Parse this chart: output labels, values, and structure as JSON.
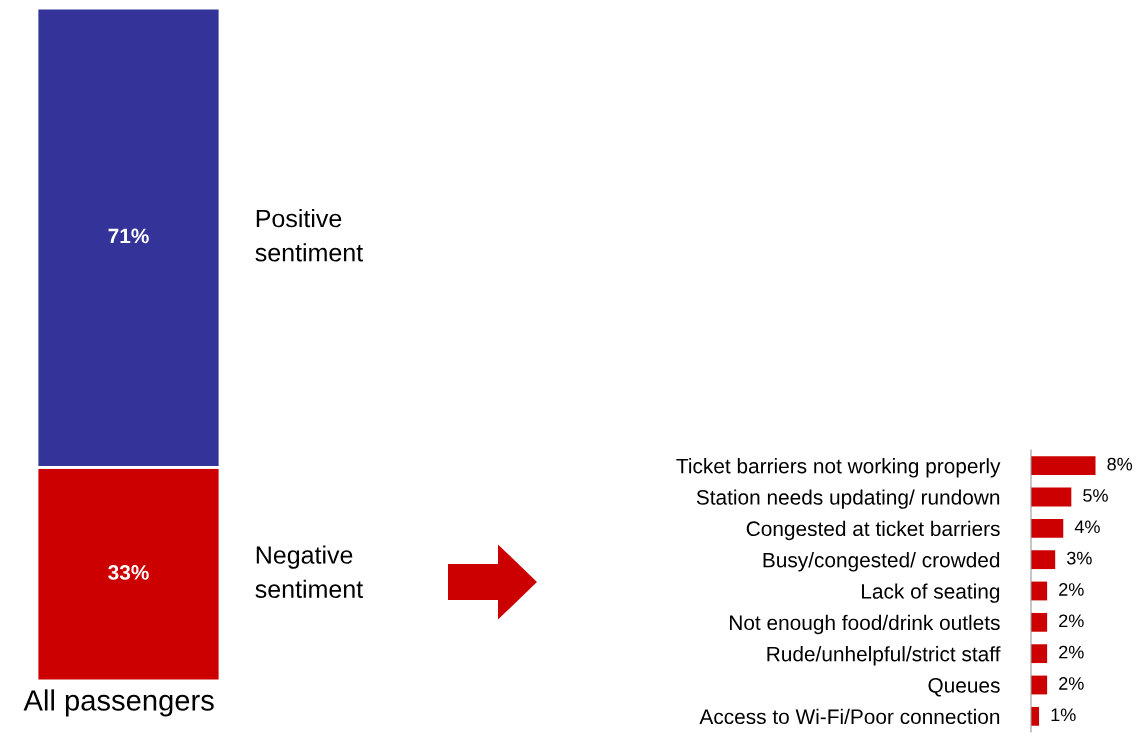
{
  "chart_data": [
    {
      "type": "bar",
      "stacked": true,
      "categories": [
        "All passengers"
      ],
      "series": [
        {
          "name": "Negative\nsentiment",
          "color": "#cc0000",
          "values": [
            33
          ],
          "value_labels": [
            "33%"
          ]
        },
        {
          "name": "Positive\nsentiment",
          "color": "#333399",
          "values": [
            71
          ],
          "value_labels": [
            "71%"
          ]
        }
      ]
    },
    {
      "type": "bar",
      "orientation": "horizontal",
      "categories": [
        "Ticket barriers not working properly",
        "Station needs updating/ rundown",
        "Congested at ticket barriers",
        "Busy/congested/ crowded",
        "Lack of seating",
        "Not enough food/drink outlets",
        "Rude/unhelpful/strict staff",
        "Queues",
        "Access to Wi-Fi/Poor connection"
      ],
      "values": [
        8,
        5,
        4,
        3,
        2,
        2,
        2,
        2,
        1
      ],
      "color": "#cc0000",
      "value_labels": [
        "8%",
        "5%",
        "4%",
        "3%",
        "2%",
        "2%",
        "2%",
        "2%",
        "1%"
      ]
    }
  ]
}
